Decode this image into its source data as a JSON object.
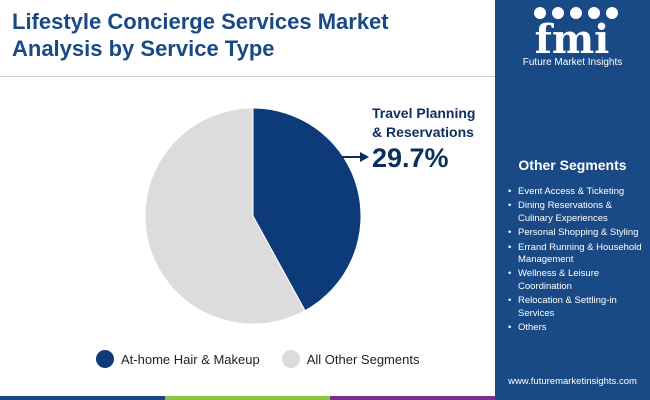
{
  "title": "Lifestyle Concierge Services Market Analysis by Service Type",
  "chart_data": {
    "type": "pie",
    "slices": [
      {
        "label": "At-home Hair & Makeup",
        "value": 42.0,
        "color": "#0d3b7a"
      },
      {
        "label": "All Other Segments",
        "value": 58.0,
        "color": "#dcdcdc"
      }
    ],
    "start_angle_deg": 0,
    "direction": "clockwise",
    "legend_position": "bottom",
    "annotation": {
      "label": "Travel Planning & Reservations",
      "value": "29.7%",
      "arrow_color": "#0d2f5e"
    }
  },
  "legend": [
    {
      "label": "At-home Hair & Makeup",
      "color": "#0d3b7a"
    },
    {
      "label": "All Other Segments",
      "color": "#dcdcdc"
    }
  ],
  "sidebar": {
    "brand_letters": "fmi",
    "brand_name": "Future Market Insights",
    "segments_title": "Other Segments",
    "segments": [
      "Event Access & Ticketing",
      "Dining Reservations & Culinary Experiences",
      "Personal Shopping & Styling",
      "Errand Running & Household Management",
      "Wellness & Leisure Coordination",
      "Relocation & Settling-in Services",
      "Others"
    ],
    "website": "www.futuremarketinsights.com",
    "background_color": "#1a4a86"
  },
  "bottom_bar_colors": [
    "#1a4a86",
    "#8cc63f",
    "#7b2d8e",
    "#1a4a86"
  ]
}
